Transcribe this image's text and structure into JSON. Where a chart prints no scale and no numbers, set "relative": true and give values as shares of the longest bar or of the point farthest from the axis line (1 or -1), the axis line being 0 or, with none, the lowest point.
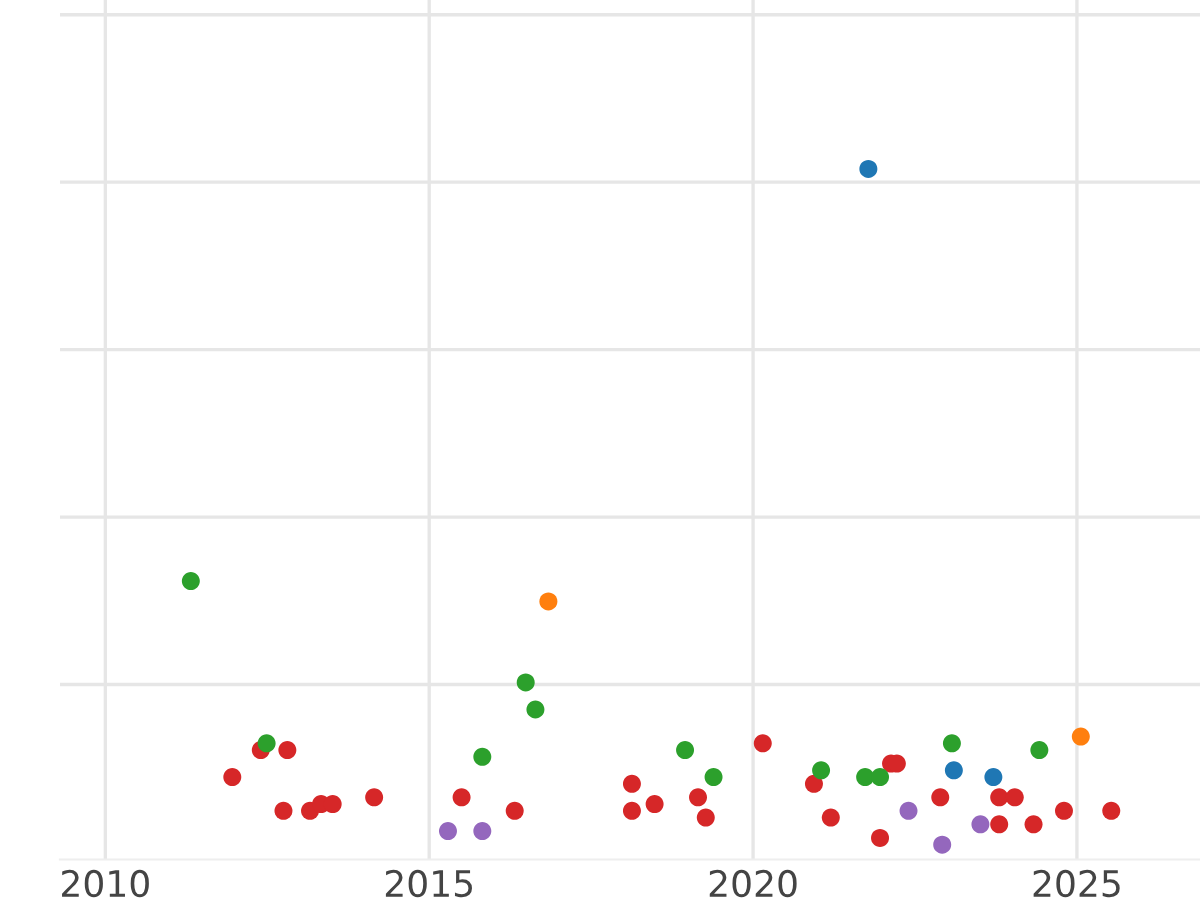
{
  "chart_data": {
    "type": "scatter",
    "relative": true,
    "grid": true,
    "tick_labels": "x",
    "marker": "circle",
    "xlim": [
      2009.3,
      2026.9
    ],
    "xticks": [
      2010,
      2015,
      2020,
      2025
    ],
    "series": [
      {
        "color": "#d62728",
        "x": [
          2011.96,
          2012.4,
          2012.81,
          2012.75,
          2013.16,
          2013.33,
          2013.51,
          2014.15,
          2015.5,
          2016.32,
          2018.13,
          2018.13,
          2018.48,
          2019.15,
          2019.27,
          2020.15,
          2020.94,
          2021.2,
          2021.96,
          2022.13,
          2022.22,
          2022.89,
          2023.8,
          2024.04,
          2023.8,
          2024.33,
          2024.8,
          2025.53
        ],
        "values": [
          0.1,
          0.14,
          0.14,
          0.05,
          0.05,
          0.06,
          0.06,
          0.07,
          0.07,
          0.05,
          0.09,
          0.05,
          0.06,
          0.07,
          0.04,
          0.15,
          0.09,
          0.04,
          0.01,
          0.12,
          0.12,
          0.07,
          0.07,
          0.07,
          0.03,
          0.03,
          0.05,
          0.05
        ]
      },
      {
        "color": "#2ca02c",
        "x": [
          2011.32,
          2012.49,
          2015.82,
          2016.49,
          2016.64,
          2018.95,
          2019.39,
          2021.05,
          2021.73,
          2021.96,
          2023.07,
          2024.42
        ],
        "values": [
          0.39,
          0.15,
          0.13,
          0.24,
          0.2,
          0.14,
          0.1,
          0.11,
          0.1,
          0.1,
          0.15,
          0.14
        ]
      },
      {
        "color": "#1f77b4",
        "x": [
          2021.78,
          2023.1,
          2023.71
        ],
        "values": [
          1.0,
          0.11,
          0.1
        ]
      },
      {
        "color": "#ff7f0e",
        "x": [
          2016.84,
          2025.06
        ],
        "values": [
          0.36,
          0.16
        ]
      },
      {
        "color": "#9467bd",
        "x": [
          2015.29,
          2015.82,
          2022.4,
          2022.92,
          2023.51
        ],
        "values": [
          0.02,
          0.02,
          0.05,
          0.0,
          0.03
        ]
      }
    ]
  }
}
